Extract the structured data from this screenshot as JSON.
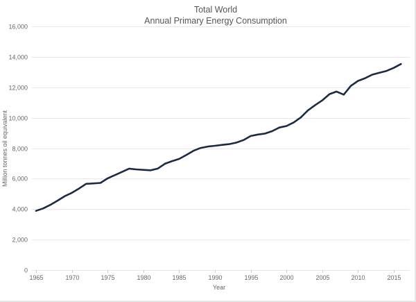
{
  "chart_data": {
    "type": "line",
    "title": "Total World",
    "subtitle": "Annual Primary Energy Consumption",
    "xlabel": "Year",
    "ylabel": "Million tonnes oil equivalent",
    "xlim": [
      1965,
      2016
    ],
    "ylim": [
      0,
      16000
    ],
    "grid": true,
    "legend": "none",
    "x_ticks": [
      1965,
      1970,
      1975,
      1980,
      1985,
      1990,
      1995,
      2000,
      2005,
      2010,
      2015
    ],
    "x_tick_labels": [
      "1965",
      "1970",
      "1975",
      "1980",
      "1985",
      "1990",
      "1995",
      "2000",
      "2005",
      "2010",
      "2015"
    ],
    "y_ticks": [
      0,
      2000,
      4000,
      6000,
      8000,
      10000,
      12000,
      14000,
      16000
    ],
    "y_tick_labels": [
      "0",
      "2,000",
      "4,000",
      "6,000",
      "8,000",
      "10,000",
      "12,000",
      "14,000",
      "16,000"
    ],
    "series": [
      {
        "name": "Total World",
        "color": "#1b2a45",
        "x": [
          1965,
          1966,
          1967,
          1968,
          1969,
          1970,
          1971,
          1972,
          1973,
          1974,
          1975,
          1976,
          1977,
          1978,
          1979,
          1980,
          1981,
          1982,
          1983,
          1984,
          1985,
          1986,
          1987,
          1988,
          1989,
          1990,
          1991,
          1992,
          1993,
          1994,
          1995,
          1996,
          1997,
          1998,
          1999,
          2000,
          2001,
          2002,
          2003,
          2004,
          2005,
          2006,
          2007,
          2008,
          2009,
          2010,
          2011,
          2012,
          2013,
          2014,
          2015,
          2016
        ],
        "values": [
          3890,
          4050,
          4280,
          4560,
          4850,
          5070,
          5350,
          5660,
          5690,
          5720,
          6020,
          6230,
          6440,
          6660,
          6610,
          6580,
          6550,
          6660,
          6980,
          7150,
          7300,
          7560,
          7830,
          8020,
          8110,
          8160,
          8220,
          8270,
          8370,
          8540,
          8800,
          8900,
          8960,
          9120,
          9360,
          9460,
          9690,
          10020,
          10490,
          10830,
          11140,
          11550,
          11720,
          11520,
          12100,
          12420,
          12600,
          12830,
          12960,
          13080,
          13280,
          13530
        ]
      }
    ]
  }
}
